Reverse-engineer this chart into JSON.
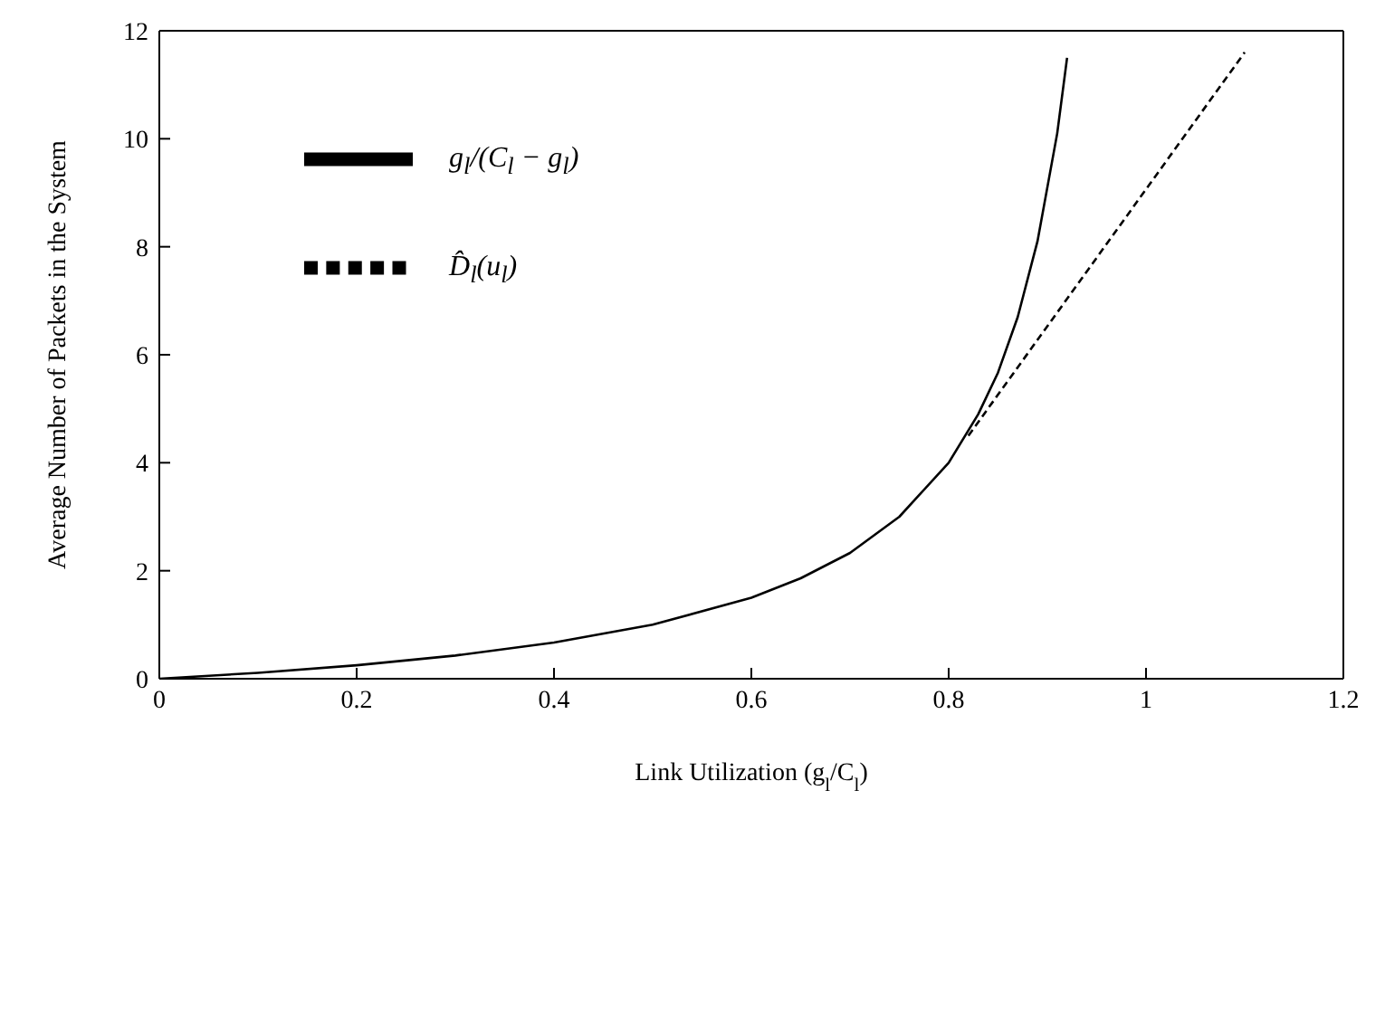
{
  "chart_data": {
    "type": "line",
    "xlabel": "Link Utilization  (g$_{l}$/C$_{l}$)",
    "ylabel": "Average Number of Packets in the System",
    "xlim": [
      0,
      1.2
    ],
    "ylim": [
      0,
      12
    ],
    "xticks": [
      0,
      0.2,
      0.4,
      0.6,
      0.8,
      1,
      1.2
    ],
    "yticks": [
      0,
      2,
      4,
      6,
      8,
      10,
      12
    ],
    "grid": false,
    "legend": "top left",
    "marker": "none",
    "series": [
      {
        "name": "g$_{l}$/(C$_{l}$ − g$_{l}$)",
        "color": "#000000",
        "line_style": "solid",
        "x": [
          0,
          0.1,
          0.2,
          0.3,
          0.4,
          0.5,
          0.6,
          0.65,
          0.7,
          0.75,
          0.8,
          0.83,
          0.85,
          0.87,
          0.89,
          0.91,
          0.92
        ],
        "values": [
          0,
          0.11,
          0.25,
          0.43,
          0.67,
          1,
          1.5,
          1.86,
          2.33,
          3,
          4,
          4.9,
          5.67,
          6.7,
          8.1,
          10.1,
          11.5
        ]
      },
      {
        "name": "D̂$_{l}$(u$_{l}$)",
        "color": "#000000",
        "line_style": "dashed",
        "x": [
          0.82,
          1.1
        ],
        "values": [
          4.5,
          11.6
        ]
      }
    ]
  }
}
